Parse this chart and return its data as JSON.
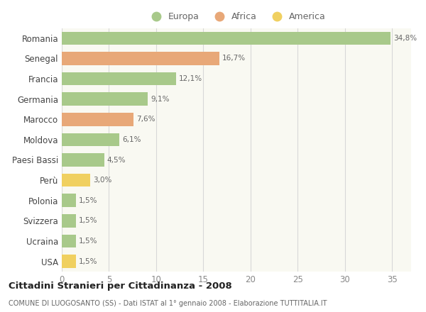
{
  "categories": [
    "Romania",
    "Senegal",
    "Francia",
    "Germania",
    "Marocco",
    "Moldova",
    "Paesi Bassi",
    "Perù",
    "Polonia",
    "Svizzera",
    "Ucraina",
    "USA"
  ],
  "values": [
    34.8,
    16.7,
    12.1,
    9.1,
    7.6,
    6.1,
    4.5,
    3.0,
    1.5,
    1.5,
    1.5,
    1.5
  ],
  "labels": [
    "34,8%",
    "16,7%",
    "12,1%",
    "9,1%",
    "7,6%",
    "6,1%",
    "4,5%",
    "3,0%",
    "1,5%",
    "1,5%",
    "1,5%",
    "1,5%"
  ],
  "continent": [
    "Europa",
    "Africa",
    "Europa",
    "Europa",
    "Africa",
    "Europa",
    "Europa",
    "America",
    "Europa",
    "Europa",
    "Europa",
    "America"
  ],
  "colors": {
    "Europa": "#a8c98a",
    "Africa": "#e8a878",
    "America": "#f0d060"
  },
  "legend": [
    "Europa",
    "Africa",
    "America"
  ],
  "legend_colors": [
    "#a8c98a",
    "#e8a878",
    "#f0d060"
  ],
  "xlim": [
    0,
    37
  ],
  "xticks": [
    0,
    5,
    10,
    15,
    20,
    25,
    30,
    35
  ],
  "title": "Cittadini Stranieri per Cittadinanza - 2008",
  "subtitle": "COMUNE DI LUOGOSANTO (SS) - Dati ISTAT al 1° gennaio 2008 - Elaborazione TUTTITALIA.IT",
  "background_color": "#ffffff",
  "plot_bg_color": "#f9f9f2",
  "grid_color": "#d8d8d8",
  "bar_label_color": "#666666",
  "ytick_color": "#444444",
  "xtick_color": "#888888"
}
